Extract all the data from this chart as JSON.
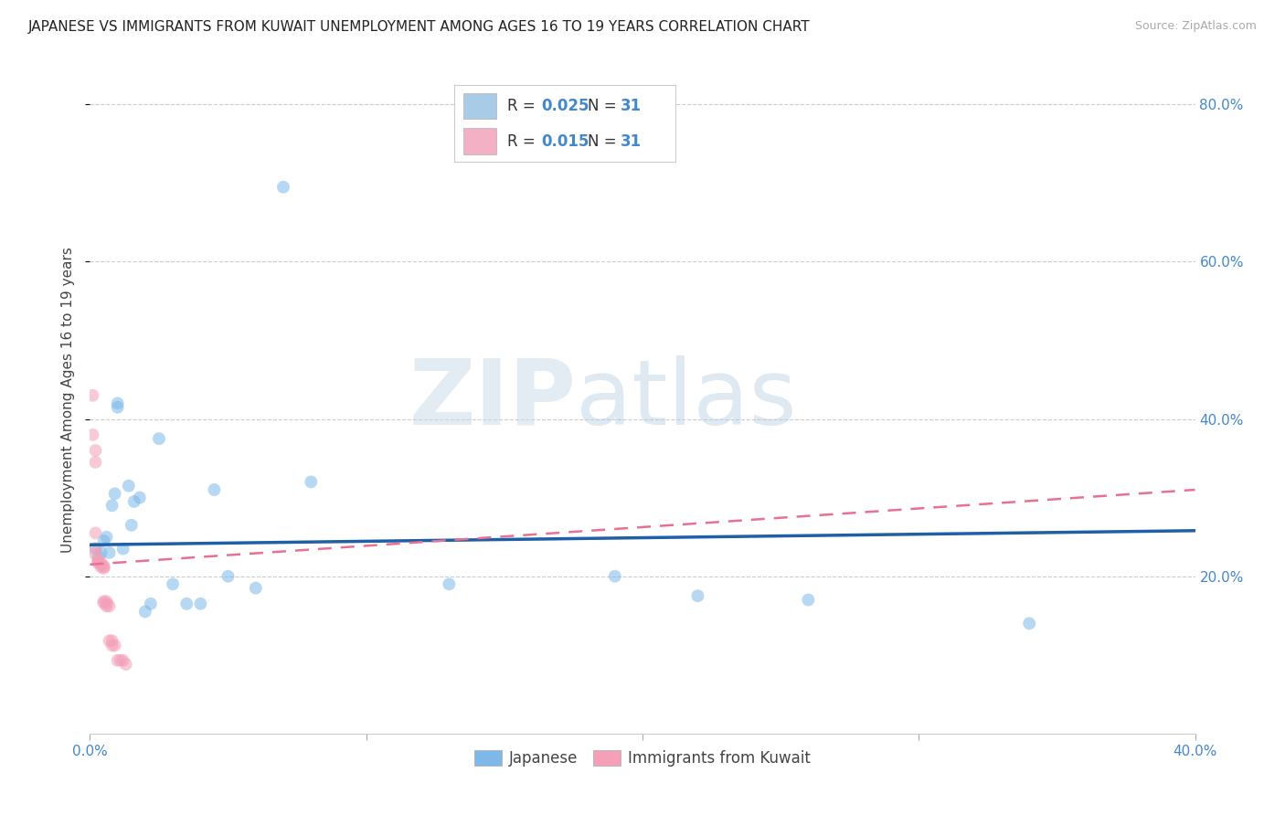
{
  "title": "JAPANESE VS IMMIGRANTS FROM KUWAIT UNEMPLOYMENT AMONG AGES 16 TO 19 YEARS CORRELATION CHART",
  "source": "Source: ZipAtlas.com",
  "ylabel": "Unemployment Among Ages 16 to 19 years",
  "xlim": [
    0.0,
    0.4
  ],
  "ylim": [
    0.0,
    0.85
  ],
  "x_ticks": [
    0.0,
    0.1,
    0.2,
    0.3,
    0.4
  ],
  "y_ticks": [
    0.2,
    0.4,
    0.6,
    0.8
  ],
  "grid_color": "#cccccc",
  "background_color": "#ffffff",
  "japanese_color": "#7db8e8",
  "kuwait_color": "#f4a0b8",
  "japanese_line_color": "#1f5fa6",
  "kuwait_line_color": "#e87090",
  "japanese_x": [
    0.002,
    0.003,
    0.004,
    0.005,
    0.006,
    0.007,
    0.008,
    0.009,
    0.01,
    0.01,
    0.012,
    0.014,
    0.015,
    0.016,
    0.018,
    0.02,
    0.022,
    0.025,
    0.03,
    0.035,
    0.04,
    0.045,
    0.05,
    0.06,
    0.07,
    0.08,
    0.13,
    0.19,
    0.22,
    0.26,
    0.34
  ],
  "japanese_y": [
    0.235,
    0.225,
    0.23,
    0.245,
    0.25,
    0.23,
    0.29,
    0.305,
    0.415,
    0.42,
    0.235,
    0.315,
    0.265,
    0.295,
    0.3,
    0.155,
    0.165,
    0.375,
    0.19,
    0.165,
    0.165,
    0.31,
    0.2,
    0.185,
    0.695,
    0.32,
    0.19,
    0.2,
    0.175,
    0.17,
    0.14
  ],
  "kuwait_x": [
    0.001,
    0.001,
    0.002,
    0.002,
    0.002,
    0.002,
    0.002,
    0.003,
    0.003,
    0.003,
    0.003,
    0.004,
    0.004,
    0.004,
    0.005,
    0.005,
    0.005,
    0.005,
    0.005,
    0.006,
    0.006,
    0.006,
    0.007,
    0.007,
    0.008,
    0.008,
    0.009,
    0.01,
    0.011,
    0.012,
    0.013
  ],
  "kuwait_y": [
    0.43,
    0.38,
    0.36,
    0.345,
    0.255,
    0.235,
    0.228,
    0.22,
    0.22,
    0.218,
    0.217,
    0.218,
    0.215,
    0.212,
    0.213,
    0.212,
    0.21,
    0.168,
    0.166,
    0.168,
    0.165,
    0.162,
    0.162,
    0.118,
    0.118,
    0.112,
    0.112,
    0.093,
    0.093,
    0.093,
    0.088
  ],
  "japanese_trend_x": [
    0.0,
    0.4
  ],
  "japanese_trend_y": [
    0.24,
    0.258
  ],
  "kuwait_trend_x": [
    0.0,
    0.4
  ],
  "kuwait_trend_y": [
    0.215,
    0.31
  ],
  "legend_r1": "0.025",
  "legend_r2": "0.015",
  "legend_n": "31",
  "legend_color1": "#a8cce8",
  "legend_color2": "#f4b0c4",
  "marker_size": 100,
  "marker_alpha": 0.55,
  "tick_color": "#4488cc",
  "title_fontsize": 11,
  "source_fontsize": 9,
  "axis_label_fontsize": 11,
  "tick_fontsize": 11,
  "legend_fontsize": 12,
  "bottom_legend_label1": "Japanese",
  "bottom_legend_label2": "Immigrants from Kuwait"
}
